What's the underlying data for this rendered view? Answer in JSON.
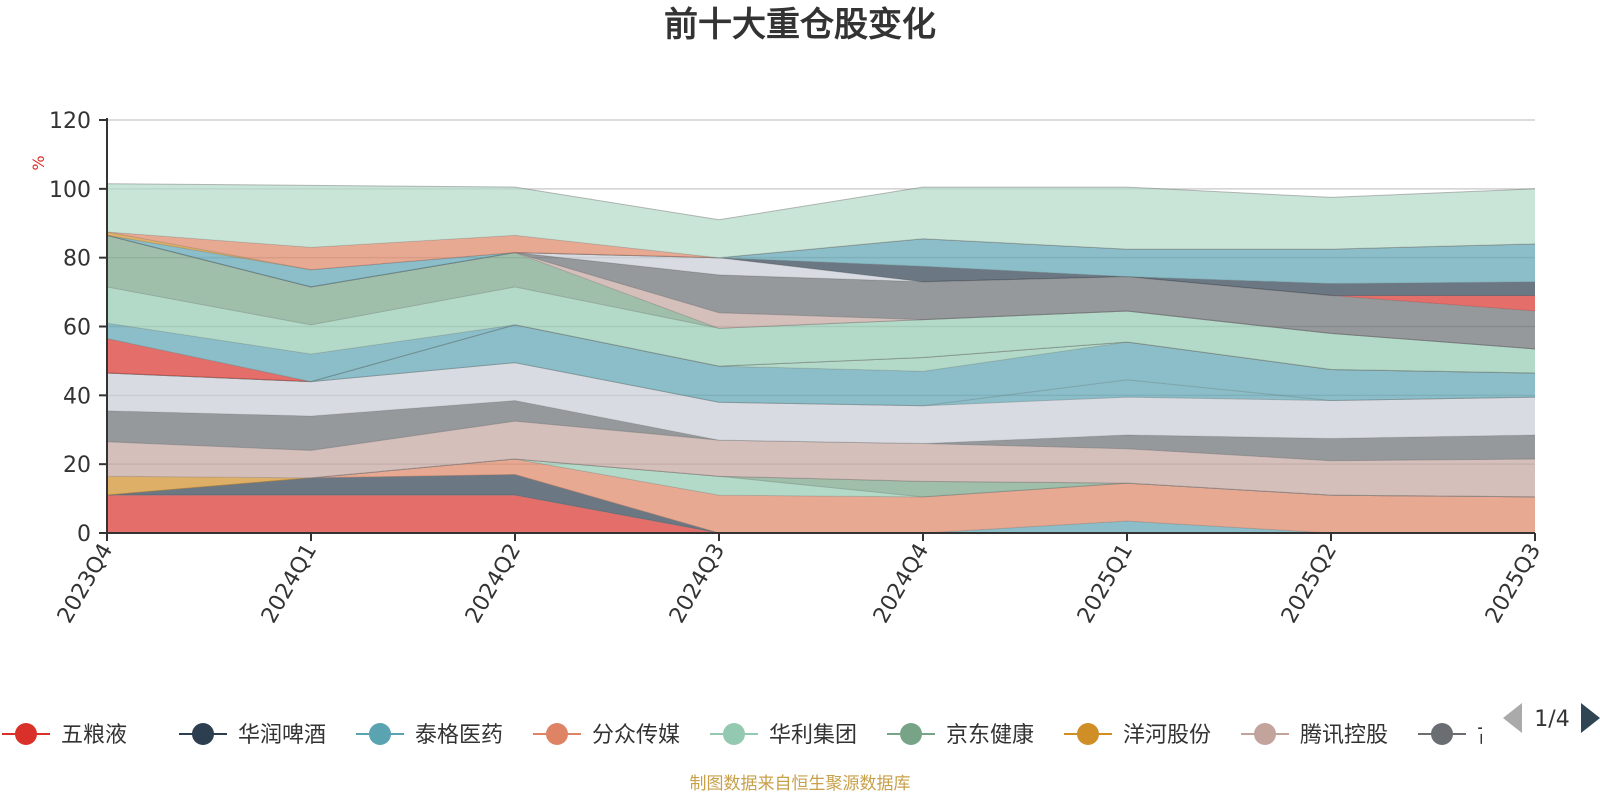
{
  "colors": {
    "五粮液": "#d9312a",
    "华润啤酒": "#2c3e50",
    "泰格医药": "#5aa3b0",
    "分众传媒": "#de8465",
    "华利集团": "#93c9b0",
    "京东健康": "#77a486",
    "洋河股份": "#d08e26",
    "腾讯控股": "#c3a49d",
    "古井贡酒": "#6a6d72",
    "other_light": "#c8ccd6",
    "rest": "#b2dac7"
  },
  "legend": {
    "items": [
      "五粮液",
      "华润啤酒",
      "泰格医药",
      "分众传媒",
      "华利集团",
      "京东健康",
      "洋河股份",
      "腾讯控股",
      "古井贡酒"
    ],
    "page": "1/4"
  },
  "footer": "制图数据来自恒生聚源数据库",
  "chart_data": {
    "type": "area",
    "title": "前十大重仓股变化",
    "ylabel": "%",
    "ylim": [
      0,
      120
    ],
    "yticks": [
      0,
      20,
      40,
      60,
      80,
      100,
      120
    ],
    "grid": true,
    "legend_position": "bottom",
    "x": [
      "2023Q4",
      "2024Q1",
      "2024Q2",
      "2024Q3",
      "2024Q4",
      "2025Q1",
      "2025Q2",
      "2025Q3"
    ],
    "series": [
      {
        "name": "五粮液",
        "color_key": "五粮液",
        "values": [
          11,
          11,
          11,
          0,
          0,
          0,
          0,
          0
        ]
      },
      {
        "name": "华润啤酒",
        "color_key": "华润啤酒",
        "values": [
          0,
          5,
          6,
          0,
          0,
          0,
          0,
          0
        ]
      },
      {
        "name": "泰格医药",
        "color_key": "泰格医药",
        "values": [
          0,
          0,
          0,
          0,
          0,
          3.5,
          0,
          0
        ]
      },
      {
        "name": "分众传媒",
        "color_key": "分众传媒",
        "values": [
          0,
          0,
          4.5,
          11,
          10.5,
          11,
          11,
          10.5
        ]
      },
      {
        "name": "华利集团",
        "color_key": "华利集团",
        "values": [
          0,
          0,
          0,
          5.5,
          0,
          0,
          0,
          0
        ]
      },
      {
        "name": "京东健康",
        "color_key": "京东健康",
        "values": [
          0,
          0,
          0,
          0,
          4.5,
          0,
          0,
          0
        ]
      },
      {
        "name": "洋河股份",
        "color_key": "洋河股份",
        "values": [
          5.5,
          0,
          0,
          0,
          0,
          0,
          0,
          0
        ]
      },
      {
        "name": "腾讯控股",
        "color_key": "腾讯控股",
        "values": [
          10,
          8,
          11,
          10.5,
          11,
          10,
          10,
          11
        ]
      },
      {
        "name": "古井贡酒",
        "color_key": "古井贡酒",
        "values": [
          9,
          10,
          6,
          0,
          0,
          4,
          6.5,
          7
        ]
      },
      {
        "color_key": "other_light",
        "values": [
          11,
          10,
          11,
          11,
          11,
          11,
          11,
          11
        ]
      },
      {
        "color_key": "泰格医药",
        "values": [
          0,
          0,
          0,
          0,
          0,
          5,
          0,
          0
        ]
      },
      {
        "color_key": "泰格医药",
        "values": [
          0,
          0,
          11,
          10.5,
          10,
          11,
          9,
          7
        ]
      },
      {
        "color_key": "华利集团",
        "values": [
          0,
          0,
          0,
          0,
          4,
          0,
          0,
          0
        ]
      },
      {
        "color_key": "五粮液",
        "values": [
          10,
          0,
          0,
          0,
          0,
          0,
          0,
          0
        ]
      },
      {
        "color_key": "泰格医药",
        "values": [
          4.5,
          8,
          0,
          0,
          0,
          0,
          0,
          0
        ]
      },
      {
        "color_key": "华利集团",
        "values": [
          10.5,
          8.5,
          11,
          11,
          11,
          9,
          10.5,
          7
        ]
      },
      {
        "color_key": "京东健康",
        "values": [
          15,
          11,
          10,
          0,
          0,
          0,
          0,
          0
        ]
      },
      {
        "color_key": "腾讯控股",
        "values": [
          0,
          0,
          0,
          4.5,
          0,
          0,
          0,
          0
        ]
      },
      {
        "color_key": "古井贡酒",
        "values": [
          0,
          0,
          0,
          11,
          11,
          10,
          11,
          11
        ]
      },
      {
        "color_key": "五粮液",
        "values": [
          0,
          0,
          0,
          0,
          0,
          0,
          0,
          4.5
        ]
      },
      {
        "color_key": "other_light",
        "values": [
          0,
          0,
          0,
          5,
          0,
          0,
          0,
          0
        ]
      },
      {
        "color_key": "华润啤酒",
        "values": [
          0,
          0,
          0,
          0,
          4.5,
          0,
          3.5,
          4
        ]
      },
      {
        "color_key": "泰格医药",
        "values": [
          0,
          5,
          0,
          0,
          8,
          8,
          10,
          11
        ]
      },
      {
        "color_key": "洋河股份",
        "values": [
          1,
          0,
          0,
          0,
          0,
          0,
          0,
          0
        ]
      },
      {
        "color_key": "分众传媒",
        "values": [
          0,
          6.5,
          5,
          0,
          0,
          0,
          0,
          0
        ]
      },
      {
        "color_key": "rest",
        "values": [
          14,
          18,
          14,
          11,
          15,
          18,
          15,
          16
        ]
      }
    ]
  }
}
